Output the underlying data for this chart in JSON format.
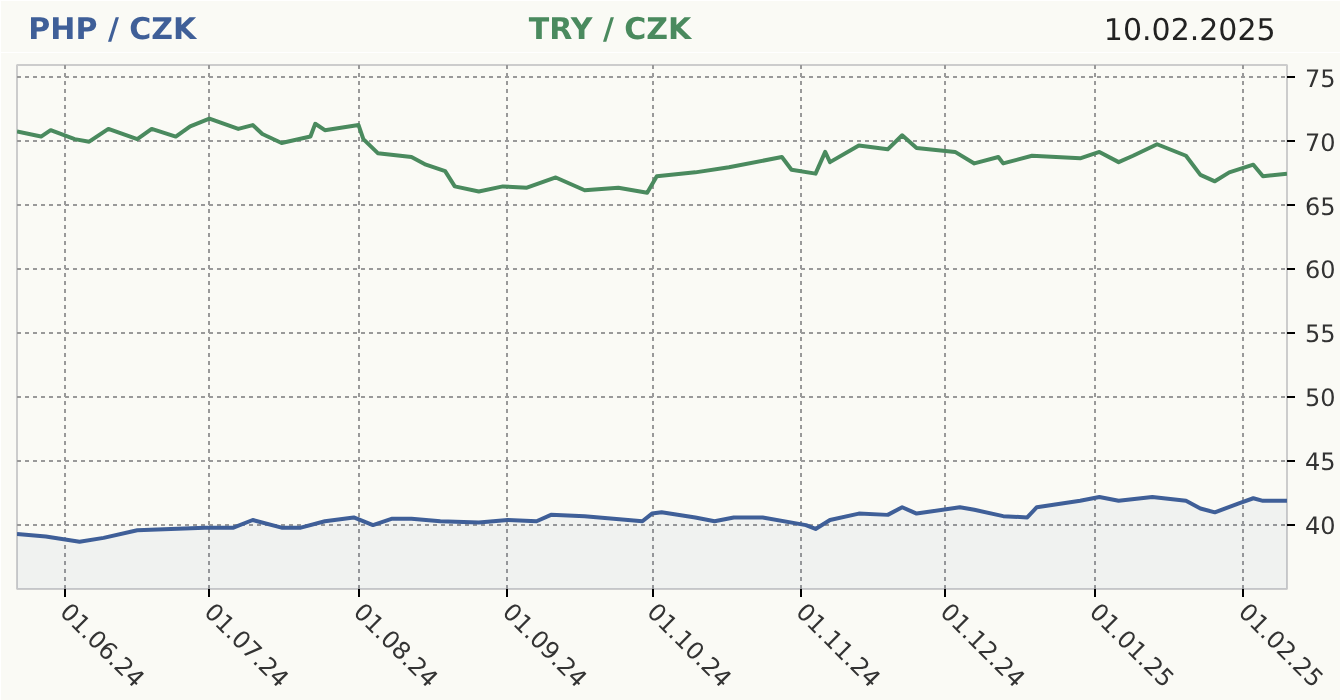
{
  "chart_data": {
    "type": "line",
    "title": "10.02.2025",
    "grid": true,
    "line_style": "solid",
    "marker": "none",
    "xlim": [
      "2024-05-22",
      "2025-02-10"
    ],
    "xticks": [
      {
        "value": "2024-06-01",
        "label": "01.06.24"
      },
      {
        "value": "2024-07-01",
        "label": "01.07.24"
      },
      {
        "value": "2024-08-01",
        "label": "01.08.24"
      },
      {
        "value": "2024-09-01",
        "label": "01.09.24"
      },
      {
        "value": "2024-10-01",
        "label": "01.10.24"
      },
      {
        "value": "2024-11-01",
        "label": "01.11.24"
      },
      {
        "value": "2024-12-01",
        "label": "01.12.24"
      },
      {
        "value": "2025-01-01",
        "label": "01.01.25"
      },
      {
        "value": "2025-02-01",
        "label": "01.02.25"
      }
    ],
    "ylim": [
      35,
      76
    ],
    "yticks": [
      40,
      45,
      50,
      55,
      60,
      65,
      70,
      75
    ],
    "series": [
      {
        "name": "PHP / CZK",
        "type": "area",
        "color": "#3f5f98",
        "x": [
          "2024-05-22",
          "2024-05-28",
          "2024-06-04",
          "2024-06-09",
          "2024-06-16",
          "2024-06-30",
          "2024-07-06",
          "2024-07-10",
          "2024-07-16",
          "2024-07-20",
          "2024-07-25",
          "2024-07-31",
          "2024-08-04",
          "2024-08-08",
          "2024-08-12",
          "2024-08-18",
          "2024-08-26",
          "2024-09-01",
          "2024-09-07",
          "2024-09-10",
          "2024-09-17",
          "2024-09-23",
          "2024-09-29",
          "2024-10-01",
          "2024-10-03",
          "2024-10-10",
          "2024-10-14",
          "2024-10-18",
          "2024-10-24",
          "2024-11-02",
          "2024-11-04",
          "2024-11-07",
          "2024-11-13",
          "2024-11-19",
          "2024-11-22",
          "2024-11-25",
          "2024-12-04",
          "2024-12-07",
          "2024-12-13",
          "2024-12-18",
          "2024-12-20",
          "2024-12-29",
          "2025-01-02",
          "2025-01-06",
          "2025-01-13",
          "2025-01-20",
          "2025-01-23",
          "2025-01-26",
          "2025-01-31",
          "2025-02-03",
          "2025-02-05",
          "2025-02-10"
        ],
        "values": [
          39.3,
          39.1,
          38.7,
          39.0,
          39.6,
          39.8,
          39.8,
          40.4,
          39.8,
          39.8,
          40.3,
          40.6,
          40.0,
          40.5,
          40.5,
          40.3,
          40.2,
          40.4,
          40.3,
          40.8,
          40.7,
          40.5,
          40.3,
          40.9,
          41.0,
          40.6,
          40.3,
          40.6,
          40.6,
          40.0,
          39.7,
          40.4,
          40.9,
          40.8,
          41.4,
          40.9,
          41.4,
          41.2,
          40.7,
          40.6,
          41.4,
          41.9,
          42.2,
          41.9,
          42.2,
          41.9,
          41.3,
          41.0,
          41.7,
          42.1,
          41.9,
          41.9
        ]
      },
      {
        "name": "TRY / CZK",
        "color": "#4a8a5e",
        "x": [
          "2024-05-22",
          "2024-05-27",
          "2024-05-29",
          "2024-06-03",
          "2024-06-06",
          "2024-06-10",
          "2024-06-16",
          "2024-06-19",
          "2024-06-24",
          "2024-06-27",
          "2024-07-01",
          "2024-07-07",
          "2024-07-10",
          "2024-07-12",
          "2024-07-16",
          "2024-07-22",
          "2024-07-23",
          "2024-07-25",
          "2024-08-01",
          "2024-08-02",
          "2024-08-05",
          "2024-08-12",
          "2024-08-15",
          "2024-08-19",
          "2024-08-21",
          "2024-08-26",
          "2024-08-31",
          "2024-09-05",
          "2024-09-11",
          "2024-09-17",
          "2024-09-24",
          "2024-09-30",
          "2024-10-02",
          "2024-10-10",
          "2024-10-17",
          "2024-10-28",
          "2024-10-30",
          "2024-11-04",
          "2024-11-06",
          "2024-11-07",
          "2024-11-13",
          "2024-11-19",
          "2024-11-22",
          "2024-11-25",
          "2024-12-03",
          "2024-12-07",
          "2024-12-12",
          "2024-12-13",
          "2024-12-19",
          "2024-12-29",
          "2025-01-02",
          "2025-01-06",
          "2025-01-09",
          "2025-01-14",
          "2025-01-20",
          "2025-01-23",
          "2025-01-26",
          "2025-01-29",
          "2025-02-03",
          "2025-02-05",
          "2025-02-10"
        ],
        "values": [
          70.8,
          70.4,
          70.9,
          70.2,
          70.0,
          71.0,
          70.2,
          71.0,
          70.4,
          71.2,
          71.8,
          71.0,
          71.3,
          70.6,
          69.9,
          70.4,
          71.4,
          70.9,
          71.3,
          70.2,
          69.1,
          68.8,
          68.2,
          67.7,
          66.5,
          66.1,
          66.5,
          66.4,
          67.2,
          66.2,
          66.4,
          66.0,
          67.3,
          67.6,
          68.0,
          68.8,
          67.8,
          67.5,
          69.2,
          68.4,
          69.7,
          69.4,
          70.5,
          69.5,
          69.2,
          68.3,
          68.8,
          68.3,
          68.9,
          68.7,
          69.2,
          68.4,
          68.9,
          69.8,
          68.9,
          67.4,
          66.9,
          67.6,
          68.2,
          67.3,
          67.5
        ]
      }
    ]
  }
}
